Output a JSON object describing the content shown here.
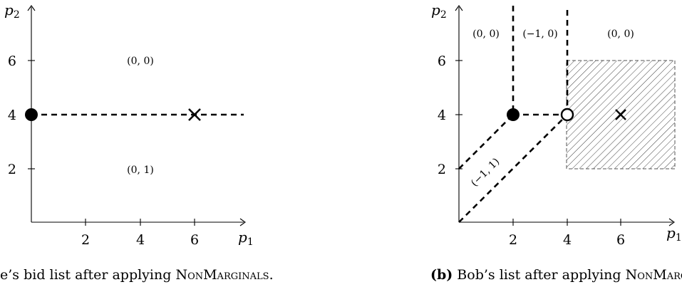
{
  "panel_a": {
    "x_ticks": [
      "2",
      "4",
      "6"
    ],
    "y_ticks": [
      "2",
      "4",
      "6"
    ],
    "x_axis_label": "p",
    "x_axis_sub": "1",
    "y_axis_label": "p",
    "y_axis_sub": "2",
    "region_labels": [
      "(0, 0)",
      "(0, 1)"
    ],
    "caption_text": "e’s bid list after applying ",
    "caption_term": "NonMarginals",
    "caption_end": "."
  },
  "panel_b": {
    "x_ticks": [
      "2",
      "4",
      "6"
    ],
    "y_ticks": [
      "2",
      "4",
      "6"
    ],
    "x_axis_label": "p",
    "x_axis_sub": "1",
    "y_axis_label": "p",
    "y_axis_sub": "2",
    "region_labels": [
      "(0, 0)",
      "(−1, 0)",
      "(0, 0)",
      "(−1, 1)"
    ],
    "caption_prefix": "(b)",
    "caption_text": " Bob’s list after applying ",
    "caption_term": "NonMarg"
  }
}
